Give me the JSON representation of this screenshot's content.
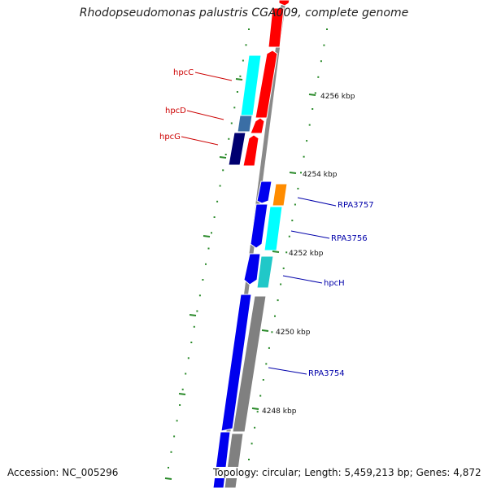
{
  "title": "Rhodopseudomonas palustris CGA009, complete genome",
  "accession": "Accession: NC_005296",
  "summary": "Topology: circular; Length: 5,459,213 bp; Genes: 4,872",
  "ruler": {
    "labels": [
      "4256 kbp",
      "4254 kbp",
      "4252 kbp",
      "4250 kbp",
      "4248 kbp"
    ]
  },
  "genes": [
    {
      "label": "hpcC",
      "color": "#cc0000"
    },
    {
      "label": "hpcD",
      "color": "#cc0000"
    },
    {
      "label": "hpcG",
      "color": "#cc0000"
    },
    {
      "label": "RPA3757",
      "color": "#0000aa"
    },
    {
      "label": "RPA3756",
      "color": "#0000aa"
    },
    {
      "label": "hpcH",
      "color": "#0000aa"
    },
    {
      "label": "RPA3754",
      "color": "#0000aa"
    }
  ],
  "colors": {
    "backbone": "#8a8a8a",
    "ticks": "#2a8a2a",
    "red": "#ff0000",
    "cyan": "#00ffff",
    "darkcyan": "#20c8c8",
    "steel": "#3a6ea5",
    "navy": "#000070",
    "blue": "#0000ee",
    "orange": "#ff8c00",
    "grey": "#808080"
  }
}
